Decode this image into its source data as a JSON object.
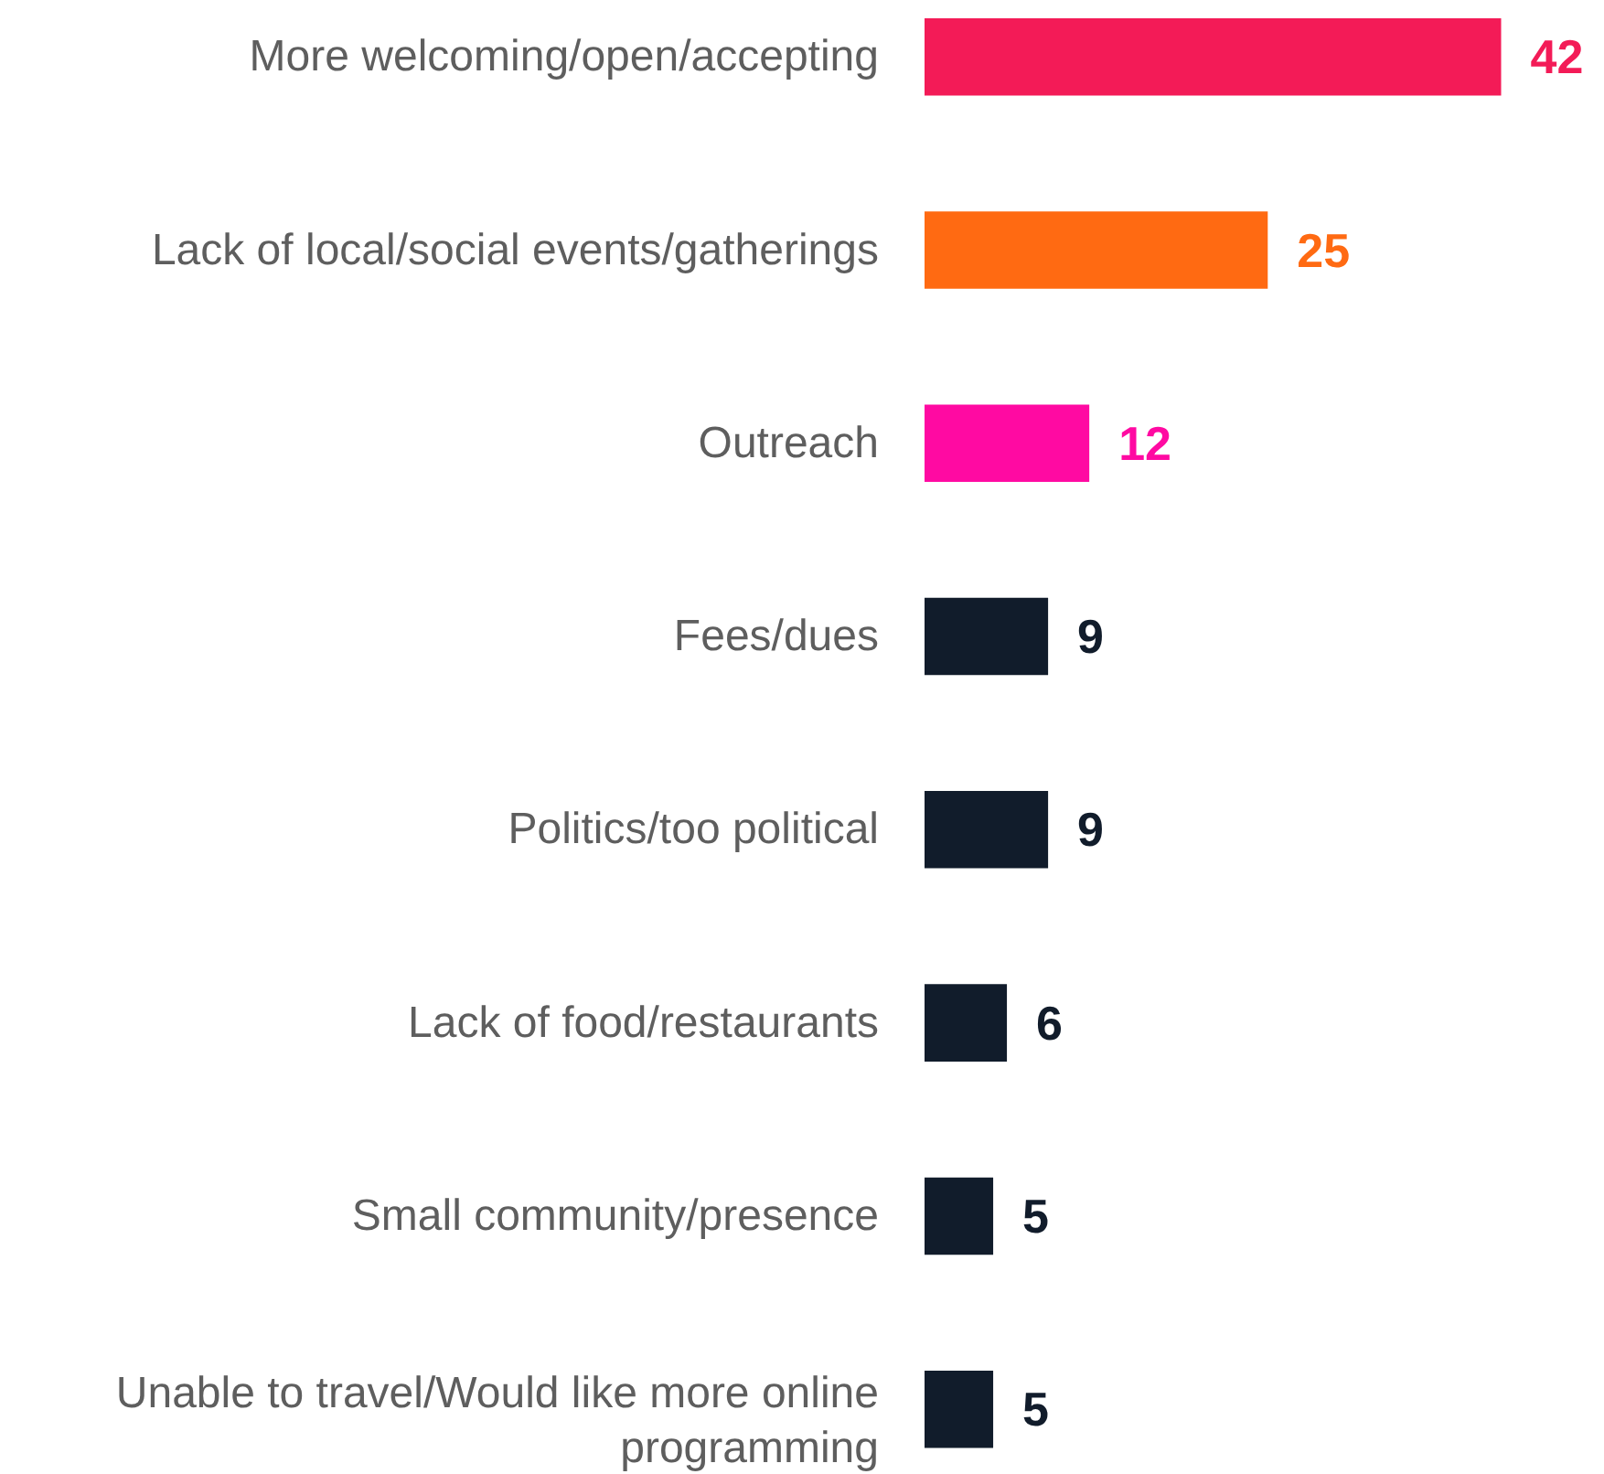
{
  "chart_data": {
    "type": "bar",
    "orientation": "horizontal",
    "data_labels": true,
    "grid": false,
    "tick_labels": false,
    "categories": [
      "More welcoming/open/accepting",
      "Lack of local/social events/gatherings",
      "Outreach",
      "Fees/dues",
      "Politics/too political",
      "Lack of food/restaurants",
      "Small community/presence",
      "Unable to travel/Would like more online programming"
    ],
    "values": [
      42,
      25,
      12,
      9,
      9,
      6,
      5,
      5
    ],
    "colors": [
      "#f31b57",
      "#ff6a12",
      "#ff0aa2",
      "#111c2b",
      "#111c2b",
      "#111c2b",
      "#111c2b",
      "#111c2b"
    ]
  }
}
